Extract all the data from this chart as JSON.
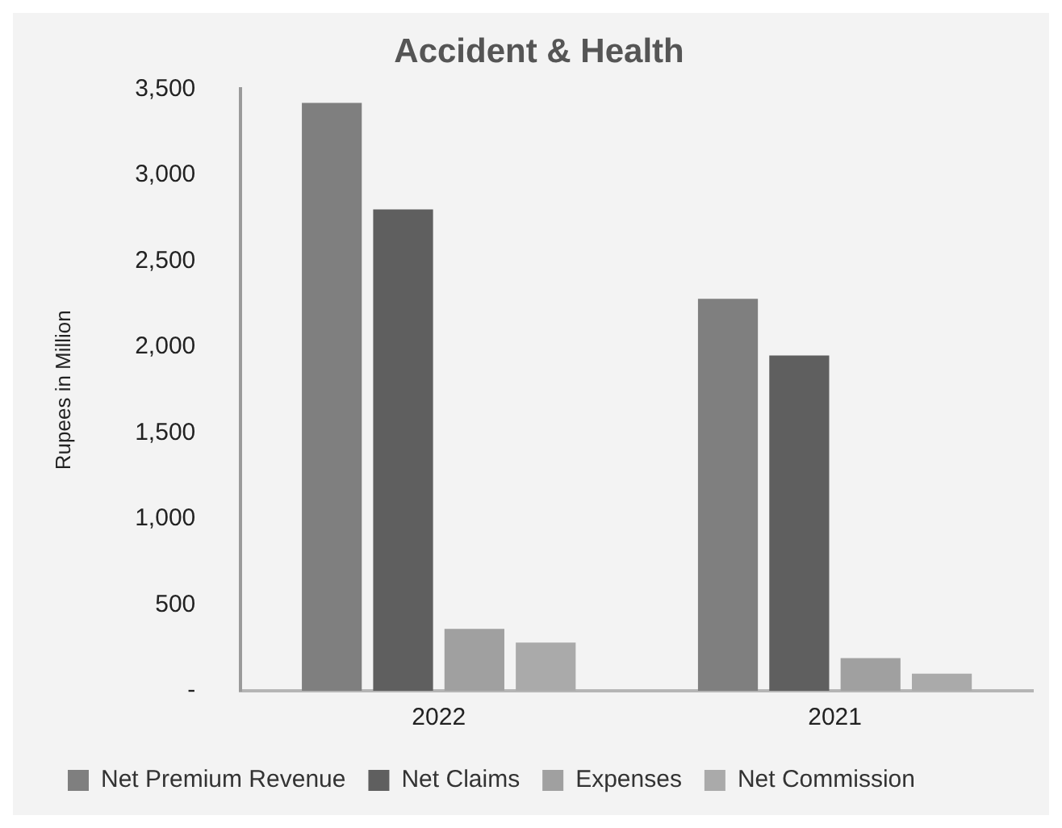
{
  "chart_data": {
    "type": "bar",
    "title": "Accident & Health",
    "ylabel": "Rupees in Million",
    "categories": [
      "2022",
      "2021"
    ],
    "series": [
      {
        "name": "Net Premium Revenue",
        "color": "#7f7f7f",
        "values": [
          3420,
          2280
        ]
      },
      {
        "name": "Net Claims",
        "color": "#5f5f5f",
        "values": [
          2800,
          1950
        ]
      },
      {
        "name": "Expenses",
        "color": "#a0a0a0",
        "values": [
          360,
          190
        ]
      },
      {
        "name": "Net Commission",
        "color": "#aaaaaa",
        "values": [
          280,
          100
        ]
      }
    ],
    "ylim": [
      0,
      3500
    ],
    "yticks": [
      {
        "value": 0,
        "label": "-"
      },
      500,
      {
        "value": 1000,
        "label": "1,000"
      },
      {
        "value": 1500,
        "label": "1,500"
      },
      {
        "value": 2000,
        "label": "2,000"
      },
      {
        "value": 2500,
        "label": "2,500"
      },
      {
        "value": 3000,
        "label": "3,000"
      },
      {
        "value": 3500,
        "label": "3,500"
      }
    ],
    "grid": false,
    "legend": "bottom"
  }
}
